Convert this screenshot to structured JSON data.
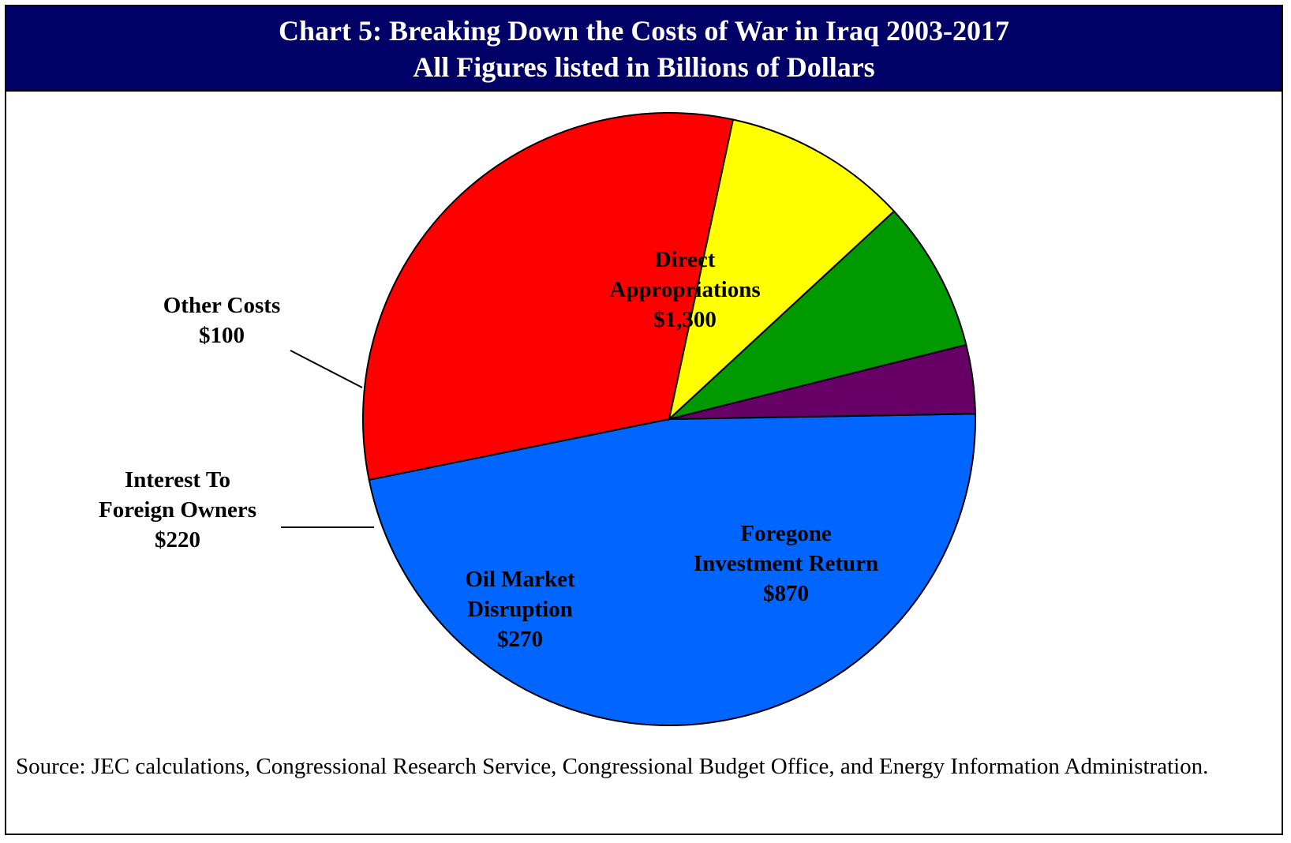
{
  "header": {
    "title": "Chart 5: Breaking Down the Costs of War in Iraq 2003-2017",
    "subtitle": "All Figures listed in Billions of Dollars"
  },
  "chart_data": {
    "type": "pie",
    "title": "Chart 5: Breaking Down the Costs of War in Iraq 2003-2017",
    "subtitle": "All Figures listed in Billions of Dollars",
    "slices": [
      {
        "label_lines": [
          "Direct",
          "Appropriations"
        ],
        "value_label": "$1,300",
        "value": 1300,
        "color": "#0066ff"
      },
      {
        "label_lines": [
          "Foregone",
          "Investment Return"
        ],
        "value_label": "$870",
        "value": 870,
        "color": "#ff0000"
      },
      {
        "label_lines": [
          "Oil Market",
          "Disruption"
        ],
        "value_label": "$270",
        "value": 270,
        "color": "#ffff00"
      },
      {
        "label_lines": [
          "Interest To",
          "Foreign Owners"
        ],
        "value_label": "$220",
        "value": 220,
        "color": "#009900"
      },
      {
        "label_lines": [
          "Other Costs"
        ],
        "value_label": "$100",
        "value": 100,
        "color": "#660066"
      }
    ]
  },
  "source": "Source: JEC calculations, Congressional Research Service, Congressional Budget Office, and Energy Information Administration."
}
